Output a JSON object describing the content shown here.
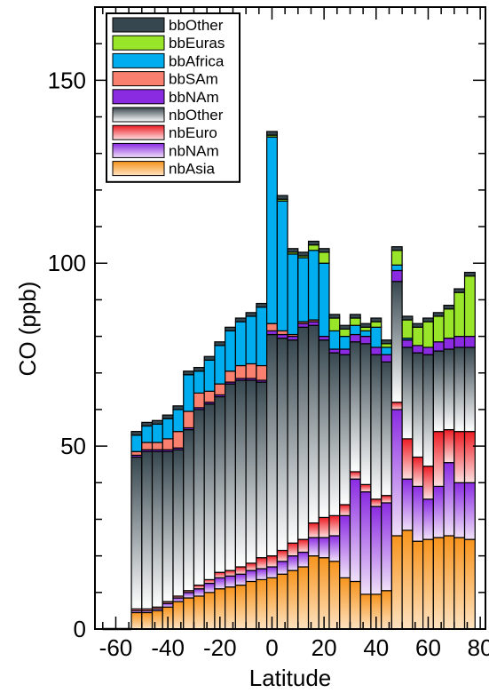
{
  "chart_data": {
    "type": "bar",
    "stacked": true,
    "xlabel": "Latitude",
    "ylabel": "CO (ppb)",
    "xlim": [
      -68,
      82
    ],
    "ylim": [
      0,
      170
    ],
    "xticks": [
      -60,
      -40,
      -20,
      0,
      20,
      40,
      60,
      80
    ],
    "yticks": [
      0,
      50,
      100,
      150
    ],
    "bin_width": 4,
    "legend_position": "top-left",
    "x": [
      -52,
      -48,
      -44,
      -40,
      -36,
      -32,
      -28,
      -24,
      -20,
      -16,
      -12,
      -8,
      -4,
      0,
      4,
      8,
      12,
      16,
      20,
      24,
      28,
      32,
      36,
      40,
      44,
      48,
      52,
      56,
      60,
      64,
      68,
      72,
      76
    ],
    "series": [
      {
        "name": "nbAsia",
        "color": "#f7941d",
        "gradient": [
          "#f7941d",
          "#fde2c0"
        ],
        "values": [
          4.5,
          4.5,
          5,
          6,
          7.5,
          8.5,
          9,
          10,
          11,
          11.5,
          12,
          13,
          13.5,
          14,
          15,
          16,
          17,
          20,
          19.5,
          18.5,
          14,
          13,
          9.5,
          9.5,
          10.5,
          25.5,
          27,
          24,
          24.5,
          25,
          25.5,
          25,
          24.5
        ]
      },
      {
        "name": "nbNAm",
        "color": "#8a2be2",
        "gradient": [
          "#8a2be2",
          "#f0e0f8"
        ],
        "values": [
          0.5,
          0.5,
          0.5,
          1,
          1,
          1.5,
          2,
          2.5,
          3,
          3,
          3,
          3,
          3,
          3,
          3.5,
          4,
          4,
          5,
          5.5,
          7,
          17,
          28,
          28,
          24,
          24,
          34.5,
          14,
          15,
          11,
          14,
          20,
          15,
          15.5
        ]
      },
      {
        "name": "nbEuro",
        "color": "#ed1c24",
        "gradient": [
          "#ed1c24",
          "#fde0e0"
        ],
        "values": [
          0.5,
          0.5,
          0.5,
          0.5,
          0.5,
          0.5,
          1,
          1,
          1.5,
          1.5,
          2,
          2,
          3,
          3,
          3,
          3.5,
          3.5,
          4,
          5.5,
          5.5,
          3,
          2,
          2,
          2,
          2,
          2,
          11,
          8,
          9,
          15,
          9,
          14,
          14
        ]
      },
      {
        "name": "nbOther",
        "color": "#37474f",
        "gradient": [
          "#37474f",
          "#ffffff"
        ],
        "values": [
          41.5,
          43,
          42.5,
          41,
          40,
          44,
          48,
          48,
          48,
          51,
          51,
          50,
          48,
          60.5,
          58,
          55.5,
          58,
          54,
          48.5,
          44.5,
          41,
          35.5,
          38.5,
          39.5,
          36.5,
          33,
          25,
          28.5,
          30.5,
          22,
          22,
          23,
          23
        ]
      },
      {
        "name": "bbNAm",
        "color": "#8a2be2",
        "values": [
          0.5,
          0.5,
          0.5,
          0.5,
          0.5,
          0.5,
          0.5,
          0.5,
          0.5,
          0.5,
          0.5,
          0.5,
          0.5,
          1,
          1,
          1,
          1,
          1,
          1,
          1,
          1.5,
          2,
          2,
          2,
          2,
          3,
          2,
          2,
          2,
          2.5,
          3,
          3,
          3
        ]
      },
      {
        "name": "bbSAm",
        "color": "#f9806f",
        "values": [
          1,
          2,
          2,
          3,
          4.5,
          4.5,
          4,
          3,
          3,
          3,
          3.5,
          4,
          4,
          2,
          1,
          0.5,
          0.5,
          0.5,
          0,
          0,
          0,
          0,
          0,
          0,
          0,
          0,
          0,
          0,
          0,
          0,
          0,
          0,
          0
        ]
      },
      {
        "name": "bbAfrica",
        "color": "#00aeef",
        "values": [
          4.5,
          4.5,
          5,
          5.5,
          6,
          10,
          6,
          8.5,
          10.5,
          11,
          12,
          13,
          16,
          51,
          35.5,
          22,
          17.5,
          19,
          20,
          5,
          3.5,
          2.5,
          1.5,
          5.5,
          2,
          1.5,
          0.5,
          0,
          0,
          0,
          0,
          0,
          0
        ]
      },
      {
        "name": "bbEuras",
        "color": "#99e52a",
        "values": [
          0,
          0,
          0,
          0,
          0,
          0,
          0,
          0,
          0,
          0,
          0,
          0,
          0,
          0.5,
          0.5,
          0.5,
          0.5,
          1.5,
          3,
          3.5,
          2,
          2,
          1,
          1.5,
          1,
          4,
          5,
          5,
          7,
          7,
          8,
          12,
          16.5
        ]
      },
      {
        "name": "bbOther",
        "color": "#37474f",
        "values": [
          1,
          1,
          1,
          1,
          1,
          1,
          1,
          1,
          1,
          1,
          1,
          1,
          1,
          1,
          1,
          1,
          1,
          1,
          1,
          1,
          1,
          1,
          1,
          1,
          1,
          1,
          1,
          1,
          1,
          1,
          1,
          1,
          1
        ]
      }
    ]
  }
}
